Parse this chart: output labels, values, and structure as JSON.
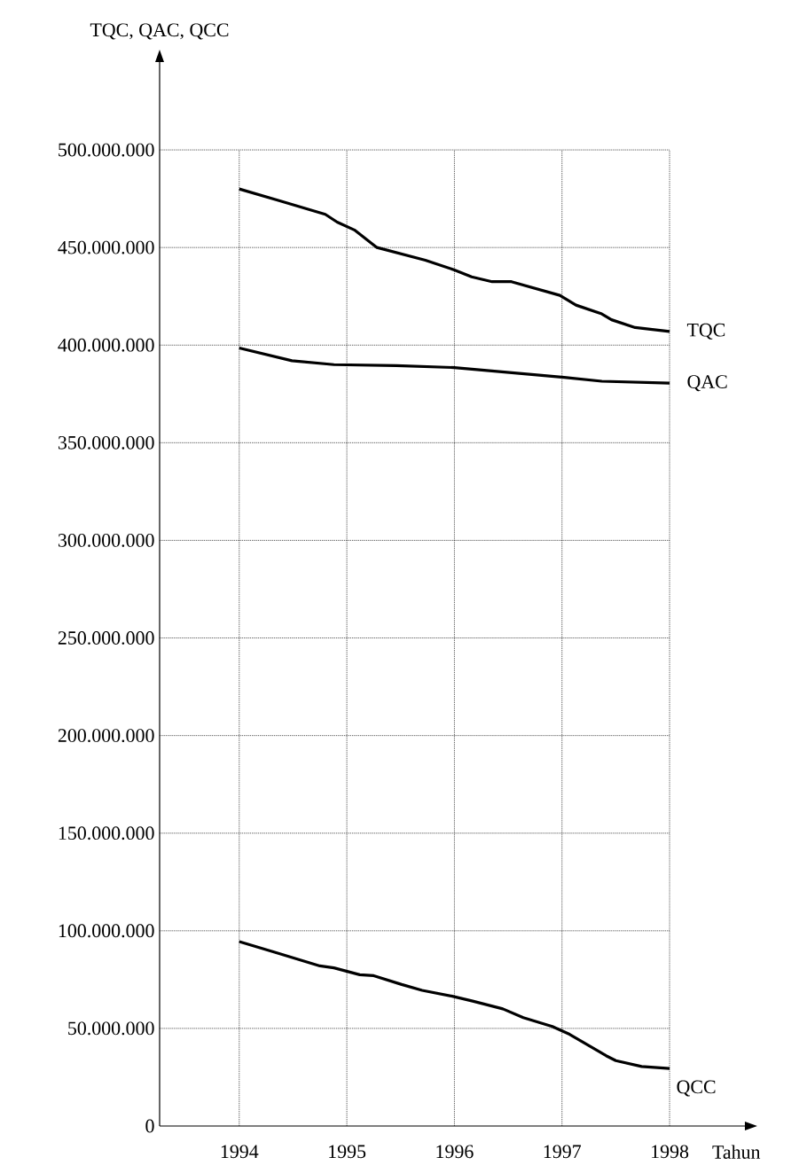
{
  "chart_data": {
    "type": "line",
    "xlabel": "Tahun",
    "ylabel": "TQC, QAC, QCC",
    "xlim": [
      1993.26,
      1998.7
    ],
    "xticks": [
      1994,
      1995,
      1996,
      1997,
      1998
    ],
    "ylim": [
      0,
      545000000
    ],
    "yticks": [
      {
        "value": 0,
        "label": "0"
      },
      {
        "value": 50000000,
        "label": "50.000.000"
      },
      {
        "value": 100000000,
        "label": "100.000.000"
      },
      {
        "value": 150000000,
        "label": "150.000.000"
      },
      {
        "value": 200000000,
        "label": "200.000.000"
      },
      {
        "value": 250000000,
        "label": "250.000.000"
      },
      {
        "value": 300000000,
        "label": "300.000.000"
      },
      {
        "value": 350000000,
        "label": "350.000.000"
      },
      {
        "value": 400000000,
        "label": "400.000.000"
      },
      {
        "value": 450000000,
        "label": "450.000.000"
      },
      {
        "value": 500000000,
        "label": "500.000.000"
      }
    ],
    "grid": true,
    "marker": "none",
    "line_style": "solid",
    "series": [
      {
        "name": "TQC",
        "color": "#000000",
        "x": [
          1994,
          1994.37,
          1994.8,
          1994.91,
          1995.07,
          1995.28,
          1995.73,
          1996,
          1996.16,
          1996.35,
          1996.53,
          1996.98,
          1997.13,
          1997.37,
          1997.46,
          1997.68,
          1998
        ],
        "values": [
          480000000,
          474000000,
          467000000,
          463000000,
          459000000,
          450000000,
          443500000,
          438500000,
          435000000,
          432500000,
          432500000,
          425500000,
          420500000,
          416000000,
          413000000,
          409000000,
          407000000
        ]
      },
      {
        "name": "QAC",
        "color": "#000000",
        "x": [
          1994,
          1994.49,
          1994.88,
          1995.46,
          1996,
          1996.51,
          1997.02,
          1997.37,
          1998
        ],
        "values": [
          398500000,
          392000000,
          390000000,
          389500000,
          388500000,
          386000000,
          383500000,
          381500000,
          380500000
        ]
      },
      {
        "name": "QCC",
        "color": "#000000",
        "x": [
          1994,
          1994.33,
          1994.75,
          1994.88,
          1995.12,
          1995.25,
          1995.51,
          1995.7,
          1995.98,
          1996.17,
          1996.45,
          1996.64,
          1996.91,
          1997.07,
          1997.41,
          1997.5,
          1997.74,
          1998
        ],
        "values": [
          94500000,
          89000000,
          82000000,
          81000000,
          77500000,
          77000000,
          72500000,
          69500000,
          66500000,
          64000000,
          60000000,
          55500000,
          51000000,
          47000000,
          36000000,
          33500000,
          30500000,
          29500000
        ]
      }
    ]
  }
}
